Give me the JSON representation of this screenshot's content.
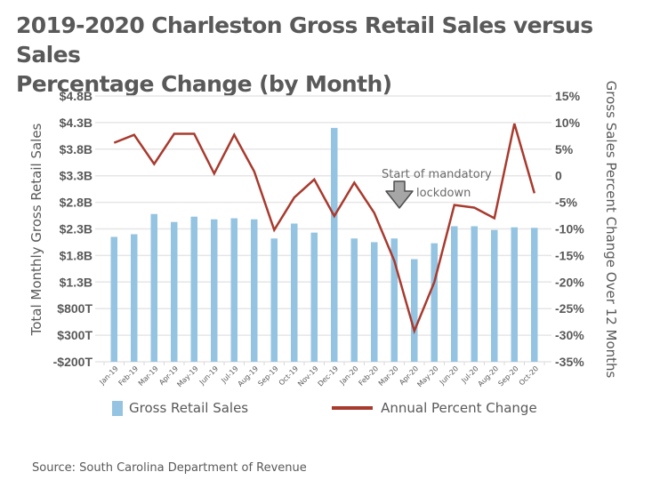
{
  "title_lines": [
    "2019-2020 Charleston Gross Retail Sales versus Sales",
    "Percentage Change (by Month)"
  ],
  "source": "Source: South Carolina Department of Revenue",
  "legend": {
    "bar_label": "Gross Retail Sales",
    "line_label": "Annual Percent Change"
  },
  "annotation": {
    "line1": "Start of mandatory",
    "line2": "lockdown",
    "arrow_icon": "down-arrow-icon"
  },
  "colors": {
    "bar": "#94c4e2",
    "line": "#a83a2e",
    "grid": "#e6e6e6",
    "text": "#595959"
  },
  "chart_data": {
    "type": "bar+line",
    "title": "2019-2020 Charleston Gross Retail Sales versus Sales Percentage Change (by Month)",
    "categories": [
      "Jan-19",
      "Feb-19",
      "Mar-19",
      "Apr-19",
      "May-19",
      "Jun-19",
      "Jul-19",
      "Aug-19",
      "Sep-19",
      "Oct-19",
      "Nov-19",
      "Dec-19",
      "Jan-20",
      "Feb-20",
      "Mar-20",
      "Apr-20",
      "May-20",
      "Jun-20",
      "Jul-20",
      "Aug-20",
      "Sep-20",
      "Oct-20"
    ],
    "series": [
      {
        "name": "Gross Retail Sales",
        "type": "bar",
        "axis": "left",
        "unit": "billions USD",
        "values": [
          2.15,
          2.2,
          2.58,
          2.43,
          2.53,
          2.48,
          2.5,
          2.48,
          2.12,
          2.4,
          2.23,
          4.2,
          2.12,
          2.05,
          2.12,
          1.73,
          2.03,
          2.35,
          2.35,
          2.28,
          2.33,
          2.32
        ]
      },
      {
        "name": "Annual Percent Change",
        "type": "line",
        "axis": "right",
        "unit": "percent",
        "values": [
          6.2,
          7.7,
          2.2,
          7.9,
          7.9,
          0.4,
          7.7,
          0.8,
          -10.2,
          -4.1,
          -0.7,
          -7.6,
          -1.3,
          -7.0,
          -16.0,
          -29.2,
          -20.0,
          -5.5,
          -6.0,
          -8.0,
          9.8,
          -3.3
        ]
      }
    ],
    "ylabel_left": "Total Monthly Gross Retail Sales",
    "ylabel_right": "Gross Sales Percent Change Over 12 Months",
    "ylim_left": [
      -0.2,
      4.8
    ],
    "ylim_right": [
      -35,
      15
    ],
    "yticks_left": [
      "$4.8B",
      "$4.3B",
      "$3.8B",
      "$3.3B",
      "$2.8B",
      "$2.3B",
      "$1.8B",
      "$1.3B",
      "$800T",
      "$300T",
      "-$200T"
    ],
    "yticks_right": [
      "15%",
      "10%",
      "5%",
      "0",
      "-5%",
      "-10%",
      "-15%",
      "-20%",
      "-25%",
      "-30%",
      "-35%"
    ],
    "grid": true,
    "legend_position": "bottom",
    "annotations": [
      {
        "text": "Start of mandatory lockdown",
        "category": "Mar-20"
      }
    ]
  }
}
